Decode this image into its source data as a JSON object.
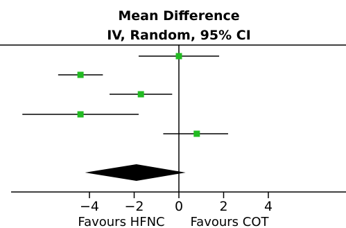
{
  "chart_data": {
    "type": "forest",
    "title": "Mean Difference",
    "subtitle": "IV, Random, 95% CI",
    "xlim": [
      -7.5,
      7.5
    ],
    "xticks": [
      -4,
      -2,
      0,
      2,
      4
    ],
    "xtick_labels": [
      "−4",
      "−2",
      "0",
      "2",
      "4"
    ],
    "favours_left": "Favours HFNC",
    "favours_right": "Favours COT",
    "studies": [
      {
        "mean": 0.0,
        "ci_low": -1.8,
        "ci_high": 1.8
      },
      {
        "mean": -4.4,
        "ci_low": -5.4,
        "ci_high": -3.4
      },
      {
        "mean": -1.7,
        "ci_low": -3.1,
        "ci_high": -0.3
      },
      {
        "mean": -4.4,
        "ci_low": -7.0,
        "ci_high": -1.8
      },
      {
        "mean": 0.8,
        "ci_low": -0.7,
        "ci_high": 2.2
      }
    ],
    "pooled": {
      "mean": -1.9,
      "ci_low": -4.2,
      "ci_high": 0.3
    },
    "colors": {
      "marker": "#22bb22",
      "line": "#000000",
      "diamond": "#000000"
    }
  }
}
